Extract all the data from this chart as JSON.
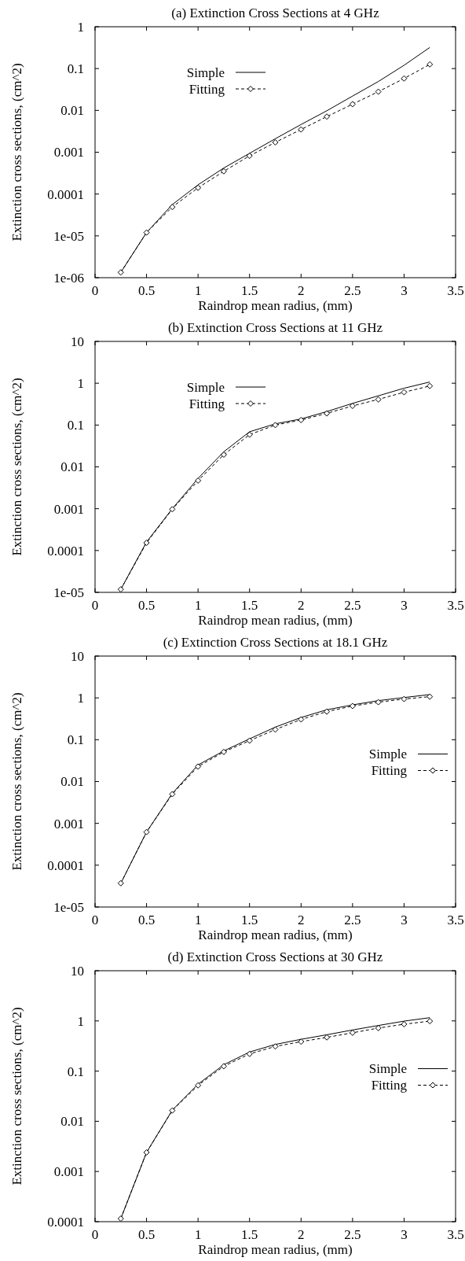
{
  "chart_data": [
    {
      "type": "line",
      "title": "(a) Extinction Cross Sections at 4 GHz",
      "xlabel": "Raindrop mean radius, (mm)",
      "ylabel": "Extinction cross sections, (cm^2)",
      "log": "y",
      "legend": "top left",
      "x": [
        0.25,
        0.5,
        0.75,
        1,
        1.25,
        1.5,
        1.75,
        2,
        2.25,
        2.5,
        2.75,
        3,
        3.25
      ],
      "xlim": [
        0,
        3.5
      ],
      "xticks": [
        0,
        0.5,
        1,
        1.5,
        2,
        2.5,
        3,
        3.5
      ],
      "ylim": [
        1e-06,
        1
      ],
      "yticks": [
        {
          "value": 1e-06,
          "label": "1e-06"
        },
        {
          "value": 1e-05,
          "label": "1e-05"
        },
        {
          "value": 0.0001,
          "label": "0.0001"
        },
        {
          "value": 0.001,
          "label": "0.001"
        },
        {
          "value": 0.01,
          "label": "0.01"
        },
        {
          "value": 0.1,
          "label": "0.1"
        },
        {
          "value": 1,
          "label": "1"
        }
      ],
      "series": [
        {
          "name": "Simple",
          "color": "#000000",
          "marker": "none",
          "line_style": "solid",
          "values": [
            1.34e-06,
            1.2e-05,
            5.6e-05,
            0.000166,
            0.00042,
            0.00094,
            0.0021,
            0.0046,
            0.0098,
            0.022,
            0.049,
            0.12,
            0.32
          ]
        },
        {
          "name": "Fitting",
          "color": "#000000",
          "marker": "diamond",
          "line_style": "dashed",
          "values": [
            1.34e-06,
            1.2e-05,
            4.9e-05,
            0.000141,
            0.00035,
            0.00082,
            0.00172,
            0.0035,
            0.0071,
            0.0141,
            0.028,
            0.058,
            0.126
          ]
        }
      ]
    },
    {
      "type": "line",
      "title": "(b) Extinction Cross Sections at 11 GHz",
      "xlabel": "Raindrop mean radius, (mm)",
      "ylabel": "Extinction cross sections, (cm^2)",
      "log": "y",
      "legend": "top left",
      "x": [
        0.25,
        0.5,
        0.75,
        1,
        1.25,
        1.5,
        1.75,
        2,
        2.25,
        2.5,
        2.75,
        3,
        3.25
      ],
      "xlim": [
        0,
        3.5
      ],
      "xticks": [
        0,
        0.5,
        1,
        1.5,
        2,
        2.5,
        3,
        3.5
      ],
      "ylim": [
        1e-05,
        10
      ],
      "yticks": [
        {
          "value": 1e-05,
          "label": "1e-05"
        },
        {
          "value": 0.0001,
          "label": "0.0001"
        },
        {
          "value": 0.001,
          "label": "0.001"
        },
        {
          "value": 0.01,
          "label": "0.01"
        },
        {
          "value": 0.1,
          "label": "0.1"
        },
        {
          "value": 1,
          "label": "1"
        },
        {
          "value": 10,
          "label": "10"
        }
      ],
      "series": [
        {
          "name": "Simple",
          "color": "#000000",
          "marker": "none",
          "line_style": "solid",
          "values": [
            1.18e-05,
            0.00016,
            0.001,
            0.0053,
            0.023,
            0.069,
            0.107,
            0.14,
            0.21,
            0.33,
            0.5,
            0.76,
            1.07
          ]
        },
        {
          "name": "Fitting",
          "color": "#000000",
          "marker": "diamond",
          "line_style": "dashed",
          "values": [
            1.18e-05,
            0.000153,
            0.00097,
            0.0047,
            0.0196,
            0.059,
            0.1,
            0.132,
            0.19,
            0.287,
            0.41,
            0.61,
            0.86
          ]
        }
      ]
    },
    {
      "type": "line",
      "title": "(c) Extinction Cross Sections at 18.1 GHz",
      "xlabel": "Raindrop mean radius, (mm)",
      "ylabel": "Extinction cross sections, (cm^2)",
      "log": "y",
      "legend": "right",
      "x": [
        0.25,
        0.5,
        0.75,
        1,
        1.25,
        1.5,
        1.75,
        2,
        2.25,
        2.5,
        2.75,
        3,
        3.25
      ],
      "xlim": [
        0,
        3.5
      ],
      "xticks": [
        0,
        0.5,
        1,
        1.5,
        2,
        2.5,
        3,
        3.5
      ],
      "ylim": [
        1e-05,
        10
      ],
      "yticks": [
        {
          "value": 1e-05,
          "label": "1e-05"
        },
        {
          "value": 0.0001,
          "label": "0.0001"
        },
        {
          "value": 0.001,
          "label": "0.001"
        },
        {
          "value": 0.01,
          "label": "0.01"
        },
        {
          "value": 0.1,
          "label": "0.1"
        },
        {
          "value": 1,
          "label": "1"
        },
        {
          "value": 10,
          "label": "10"
        }
      ],
      "series": [
        {
          "name": "Simple",
          "color": "#000000",
          "marker": "none",
          "line_style": "solid",
          "values": [
            3.7e-05,
            0.00062,
            0.0052,
            0.025,
            0.054,
            0.105,
            0.2,
            0.34,
            0.52,
            0.68,
            0.86,
            1.02,
            1.2
          ]
        },
        {
          "name": "Fitting",
          "color": "#000000",
          "marker": "diamond",
          "line_style": "dashed",
          "values": [
            3.7e-05,
            0.00062,
            0.005,
            0.0228,
            0.051,
            0.095,
            0.175,
            0.306,
            0.47,
            0.64,
            0.79,
            0.94,
            1.07
          ]
        }
      ]
    },
    {
      "type": "line",
      "title": "(d) Extinction Cross Sections at 30 GHz",
      "xlabel": "Raindrop mean radius, (mm)",
      "ylabel": "Extinction cross sections, (cm^2)",
      "log": "y",
      "legend": "right",
      "x": [
        0.25,
        0.5,
        0.75,
        1,
        1.25,
        1.5,
        1.75,
        2,
        2.25,
        2.5,
        2.75,
        3,
        3.25
      ],
      "xlim": [
        0,
        3.5
      ],
      "xticks": [
        0,
        0.5,
        1,
        1.5,
        2,
        2.5,
        3,
        3.5
      ],
      "ylim": [
        0.0001,
        10
      ],
      "yticks": [
        {
          "value": 0.0001,
          "label": "0.0001"
        },
        {
          "value": 0.001,
          "label": "0.001"
        },
        {
          "value": 0.01,
          "label": "0.01"
        },
        {
          "value": 0.1,
          "label": "0.1"
        },
        {
          "value": 1,
          "label": "1"
        },
        {
          "value": 10,
          "label": "10"
        }
      ],
      "series": [
        {
          "name": "Simple",
          "color": "#000000",
          "marker": "none",
          "line_style": "solid",
          "values": [
            0.000115,
            0.0024,
            0.0167,
            0.055,
            0.134,
            0.24,
            0.34,
            0.43,
            0.53,
            0.66,
            0.81,
            0.99,
            1.16
          ]
        },
        {
          "name": "Fitting",
          "color": "#000000",
          "marker": "diamond",
          "line_style": "dashed",
          "values": [
            0.000115,
            0.0024,
            0.0164,
            0.052,
            0.125,
            0.22,
            0.31,
            0.386,
            0.47,
            0.58,
            0.72,
            0.86,
            0.99
          ]
        }
      ]
    }
  ]
}
